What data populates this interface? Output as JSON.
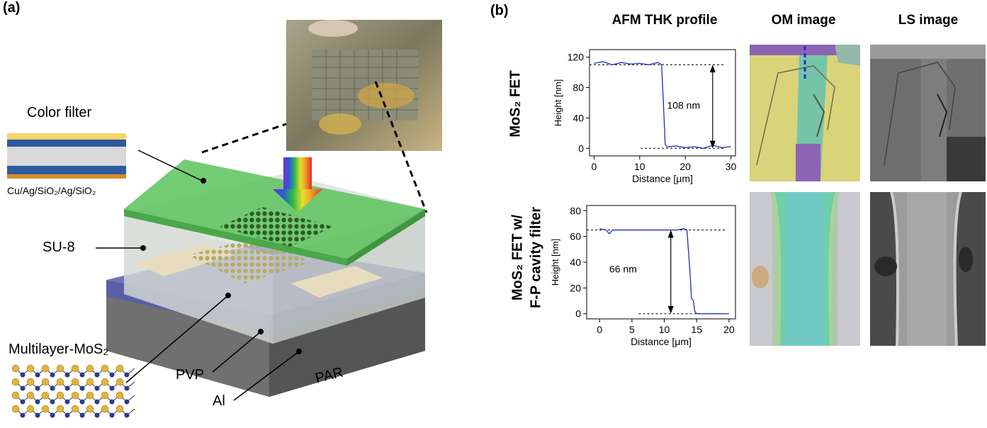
{
  "panel_a": {
    "letter": "(a)",
    "labels": {
      "color_filter": "Color filter",
      "filter_stack": "Cu/Ag/SiO₂/Ag/SiO₂",
      "su8": "SU-8",
      "mos2": "Multilayer-MoS₂",
      "pvp": "PVP",
      "al": "Al",
      "par": "PAR"
    },
    "filter_colors": [
      "#f6d66b",
      "#2e5aa0",
      "#d9d9d9",
      "#2e5aa0",
      "#d98c2a"
    ]
  },
  "panel_b": {
    "letter": "(b)",
    "col_headers": [
      "AFM THK profile",
      "OM image",
      "LS image"
    ],
    "row_labels": {
      "row1": "MoS₂ FET",
      "row2_line1": "MoS₂ FET w/",
      "row2_line2": "F-P cavity filter"
    }
  },
  "chart_data": [
    {
      "type": "line",
      "title": "",
      "xlabel": "Distance [μm]",
      "ylabel": "Height [nm]",
      "xlim": [
        -1,
        31
      ],
      "ylim": [
        -10,
        130
      ],
      "xticks": [
        0,
        10,
        20,
        30
      ],
      "yticks": [
        0,
        40,
        80,
        120
      ],
      "annotation": "108 nm",
      "reference_levels": [
        110,
        0
      ],
      "series": [
        {
          "x": [
            0,
            2,
            4,
            6,
            8,
            10,
            12,
            14,
            14.8,
            15.2,
            15.6,
            16,
            18,
            20,
            22,
            24,
            26,
            28,
            30
          ],
          "y": [
            112,
            114,
            110,
            113,
            111,
            112,
            110,
            113,
            110,
            60,
            5,
            2,
            3,
            1,
            2,
            0,
            4,
            1,
            2
          ]
        }
      ],
      "color": "#1f2dbf"
    },
    {
      "type": "line",
      "title": "",
      "xlabel": "Distance [μm]",
      "ylabel": "Height [nm]",
      "xlim": [
        -2,
        21
      ],
      "ylim": [
        -4,
        84
      ],
      "xticks": [
        0,
        5,
        10,
        15,
        20
      ],
      "yticks": [
        0,
        20,
        40,
        60,
        80
      ],
      "annotation": "66 nm",
      "reference_levels": [
        65,
        0
      ],
      "series": [
        {
          "x": [
            0,
            1,
            1.5,
            2,
            4,
            6,
            8,
            10,
            12,
            13,
            13.5,
            14,
            14.2,
            14.5,
            14.7,
            15,
            16,
            18,
            20
          ],
          "y": [
            66,
            65,
            62,
            65,
            65,
            65,
            65,
            65,
            65,
            66,
            65,
            30,
            12,
            10,
            2,
            0,
            0,
            0,
            0
          ]
        }
      ],
      "color": "#1f2dbf"
    }
  ]
}
